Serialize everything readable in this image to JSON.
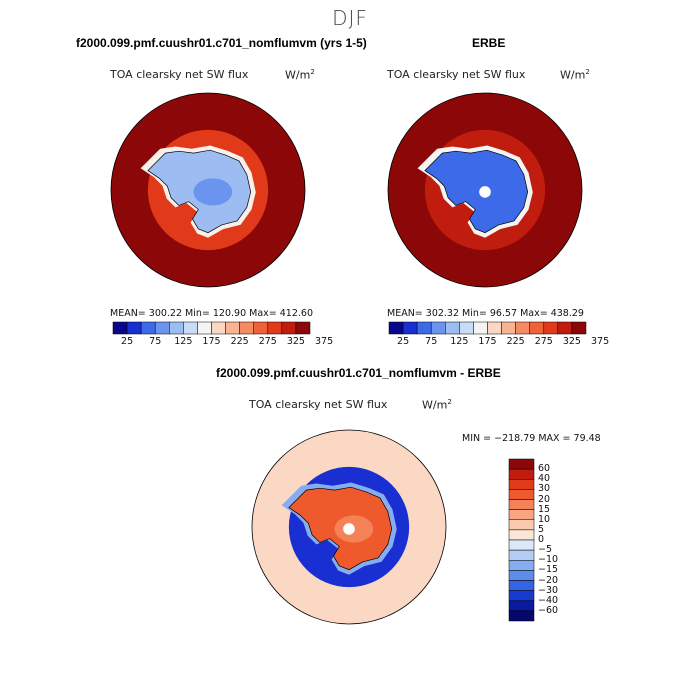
{
  "season": "DJF",
  "panels": [
    {
      "title": "f2000.099.pmf.cuushr01.c701_nomflumvm (yrs 1-5)",
      "variable": "TOA clearsky net SW flux",
      "units": "W/m",
      "units_exp": "2",
      "stats": "MEAN= 300.22   Min= 120.90   Max= 412.60"
    },
    {
      "title": "ERBE",
      "variable": "TOA clearsky net SW flux",
      "units": "W/m",
      "units_exp": "2",
      "stats": "MEAN= 302.32   Min=  96.57   Max= 438.29"
    },
    {
      "title": "f2000.099.pmf.cuushr01.c701_nomflumvm - ERBE",
      "variable": "TOA clearsky net SW flux",
      "units": "W/m",
      "units_exp": "2",
      "stats": "MIN = −218.79 MAX =  79.48"
    }
  ],
  "colorbar_abs": {
    "labels": [
      "25",
      "75",
      "125",
      "175",
      "225",
      "275",
      "325",
      "375"
    ],
    "colors": [
      "#08088c",
      "#1a2fd1",
      "#3d6ae8",
      "#6b94ef",
      "#9cbcf2",
      "#c9dcf6",
      "#f4f4f4",
      "#fbd8c4",
      "#f8b393",
      "#f48b62",
      "#ef6136",
      "#e03a1a",
      "#c01d0e",
      "#8c0808"
    ]
  },
  "colorbar_diff": {
    "labels": [
      "60",
      "40",
      "30",
      "20",
      "15",
      "10",
      "5",
      "0",
      "−5",
      "−10",
      "−15",
      "−20",
      "−30",
      "−40",
      "−60"
    ],
    "colors": [
      "#8c0808",
      "#c01d0e",
      "#e03a1a",
      "#ef5a2c",
      "#f48158",
      "#f8a582",
      "#fbc9ad",
      "#fbe6d8",
      "#dce8f7",
      "#b3cdf4",
      "#86adef",
      "#5d8ceb",
      "#3264e3",
      "#173ad0",
      "#0a1a9e",
      "#05076a"
    ]
  },
  "maps": [
    {
      "ocean": "#8c0808",
      "ring": "#e03a1a",
      "ice_edge": "#f8f0ea",
      "land": "#9cbcf2",
      "interior": "#6b94ef"
    },
    {
      "ocean": "#8c0808",
      "ring": "#c01d0e",
      "ice_edge": "#f4f4f4",
      "land": "#3d6ae8",
      "interior": "#3d6ae8"
    },
    {
      "ocean": "#fbd8c4",
      "ring": "#1a2fd1",
      "ice_edge": "#86adef",
      "land": "#ef5a2c",
      "interior": "#f48158"
    }
  ]
}
